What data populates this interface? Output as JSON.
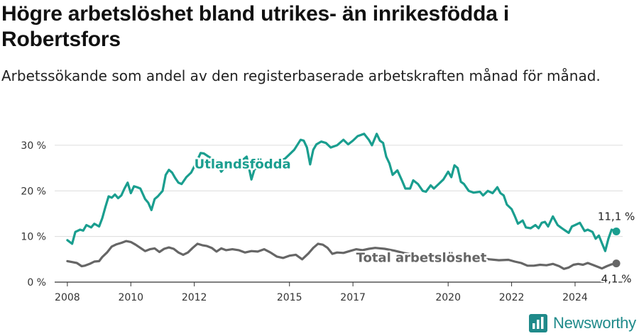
{
  "title": "Högre arbetslöshet bland utrikes- än inrikesfödda i Robertsfors",
  "subtitle": "Arbetssökande som andel av den registerbaserade arbetskraften månad för månad.",
  "brand": {
    "name": "Newsworthy",
    "icon": "newsworthy-logo-icon"
  },
  "colors": {
    "utlandsfodda": "#1a9e8f",
    "total": "#666666",
    "grid": "#dcdcdc",
    "axis": "#333333"
  },
  "chart_data": {
    "type": "line",
    "xlabel": "",
    "ylabel": "",
    "xlim": [
      2007.6,
      2025.5
    ],
    "ylim": [
      0,
      32
    ],
    "x_ticks": [
      2008,
      2010,
      2012,
      2015,
      2017,
      2020,
      2022,
      2024
    ],
    "y_ticks": [
      {
        "value": 0,
        "label": "0 %"
      },
      {
        "value": 10,
        "label": "10 %"
      },
      {
        "value": 20,
        "label": "20 %"
      },
      {
        "value": 30,
        "label": "30 %"
      }
    ],
    "grid": true,
    "series": [
      {
        "name": "Utlandsfödda",
        "end_label": "11,1 %",
        "points": [
          [
            2008.0,
            9.2
          ],
          [
            2008.15,
            8.4
          ],
          [
            2008.25,
            11.0
          ],
          [
            2008.4,
            11.5
          ],
          [
            2008.5,
            11.3
          ],
          [
            2008.6,
            12.5
          ],
          [
            2008.75,
            12.0
          ],
          [
            2008.85,
            12.8
          ],
          [
            2009.0,
            12.2
          ],
          [
            2009.1,
            14.0
          ],
          [
            2009.2,
            16.5
          ],
          [
            2009.3,
            18.8
          ],
          [
            2009.4,
            18.5
          ],
          [
            2009.5,
            19.2
          ],
          [
            2009.6,
            18.4
          ],
          [
            2009.7,
            19.0
          ],
          [
            2009.8,
            20.5
          ],
          [
            2009.9,
            21.8
          ],
          [
            2010.0,
            19.5
          ],
          [
            2010.1,
            21.0
          ],
          [
            2010.2,
            20.8
          ],
          [
            2010.3,
            20.5
          ],
          [
            2010.45,
            18.2
          ],
          [
            2010.55,
            17.4
          ],
          [
            2010.65,
            15.8
          ],
          [
            2010.75,
            18.2
          ],
          [
            2010.85,
            18.8
          ],
          [
            2011.0,
            20.0
          ],
          [
            2011.1,
            23.5
          ],
          [
            2011.2,
            24.6
          ],
          [
            2011.3,
            24.0
          ],
          [
            2011.4,
            22.8
          ],
          [
            2011.5,
            21.8
          ],
          [
            2011.6,
            21.5
          ],
          [
            2011.75,
            23.0
          ],
          [
            2011.9,
            24.0
          ],
          [
            2012.05,
            26.0
          ],
          [
            2012.2,
            28.3
          ],
          [
            2012.3,
            28.2
          ],
          [
            2012.45,
            27.5
          ],
          [
            2012.7,
            26.5
          ],
          [
            2012.85,
            24.2
          ],
          [
            2013.0,
            25.5
          ],
          [
            2013.2,
            25.4
          ],
          [
            2013.4,
            26.0
          ],
          [
            2013.65,
            27.5
          ],
          [
            2013.8,
            22.5
          ],
          [
            2013.9,
            24.8
          ],
          [
            2014.1,
            25.0
          ],
          [
            2014.3,
            25.5
          ],
          [
            2014.6,
            26.5
          ],
          [
            2014.85,
            27.0
          ],
          [
            2015.0,
            28.0
          ],
          [
            2015.15,
            29.0
          ],
          [
            2015.35,
            31.2
          ],
          [
            2015.45,
            31.0
          ],
          [
            2015.55,
            29.5
          ],
          [
            2015.65,
            25.8
          ],
          [
            2015.75,
            29.0
          ],
          [
            2015.85,
            30.2
          ],
          [
            2016.0,
            30.8
          ],
          [
            2016.15,
            30.5
          ],
          [
            2016.3,
            29.5
          ],
          [
            2016.5,
            30.0
          ],
          [
            2016.7,
            31.2
          ],
          [
            2016.85,
            30.2
          ],
          [
            2017.0,
            31.0
          ],
          [
            2017.15,
            32.0
          ],
          [
            2017.35,
            32.5
          ],
          [
            2017.5,
            31.2
          ],
          [
            2017.6,
            30.0
          ],
          [
            2017.75,
            32.5
          ],
          [
            2017.85,
            31.0
          ],
          [
            2017.95,
            30.5
          ],
          [
            2018.05,
            27.5
          ],
          [
            2018.15,
            26.0
          ],
          [
            2018.25,
            23.5
          ],
          [
            2018.4,
            24.5
          ],
          [
            2018.55,
            22.2
          ],
          [
            2018.65,
            20.5
          ],
          [
            2018.8,
            20.5
          ],
          [
            2018.9,
            22.3
          ],
          [
            2019.05,
            21.5
          ],
          [
            2019.2,
            20.0
          ],
          [
            2019.3,
            19.8
          ],
          [
            2019.45,
            21.2
          ],
          [
            2019.55,
            20.5
          ],
          [
            2019.7,
            21.5
          ],
          [
            2019.85,
            22.5
          ],
          [
            2020.0,
            24.2
          ],
          [
            2020.1,
            23.0
          ],
          [
            2020.2,
            25.6
          ],
          [
            2020.3,
            25.0
          ],
          [
            2020.4,
            22.0
          ],
          [
            2020.5,
            21.5
          ],
          [
            2020.65,
            20.0
          ],
          [
            2020.8,
            19.6
          ],
          [
            2021.0,
            19.8
          ],
          [
            2021.1,
            19.0
          ],
          [
            2021.25,
            20.0
          ],
          [
            2021.4,
            19.5
          ],
          [
            2021.55,
            20.8
          ],
          [
            2021.65,
            19.5
          ],
          [
            2021.75,
            19.0
          ],
          [
            2021.85,
            17.0
          ],
          [
            2022.0,
            16.0
          ],
          [
            2022.1,
            14.5
          ],
          [
            2022.2,
            12.8
          ],
          [
            2022.35,
            13.5
          ],
          [
            2022.45,
            12.0
          ],
          [
            2022.6,
            11.8
          ],
          [
            2022.75,
            12.5
          ],
          [
            2022.85,
            11.8
          ],
          [
            2022.95,
            13.0
          ],
          [
            2023.05,
            13.2
          ],
          [
            2023.15,
            12.2
          ],
          [
            2023.3,
            14.4
          ],
          [
            2023.45,
            12.5
          ],
          [
            2023.55,
            12.0
          ],
          [
            2023.65,
            11.5
          ],
          [
            2023.8,
            10.8
          ],
          [
            2023.9,
            12.2
          ],
          [
            2024.0,
            12.5
          ],
          [
            2024.15,
            13.0
          ],
          [
            2024.3,
            11.2
          ],
          [
            2024.4,
            11.5
          ],
          [
            2024.55,
            11.0
          ],
          [
            2024.65,
            9.5
          ],
          [
            2024.75,
            10.2
          ],
          [
            2024.85,
            8.5
          ],
          [
            2024.95,
            6.8
          ],
          [
            2025.05,
            9.5
          ],
          [
            2025.15,
            11.5
          ],
          [
            2025.3,
            11.1
          ]
        ]
      },
      {
        "name": "Total arbetslöshet",
        "end_label": "4,1 %",
        "points": [
          [
            2008.0,
            4.6
          ],
          [
            2008.15,
            4.4
          ],
          [
            2008.3,
            4.2
          ],
          [
            2008.45,
            3.5
          ],
          [
            2008.55,
            3.6
          ],
          [
            2008.7,
            4.0
          ],
          [
            2008.85,
            4.5
          ],
          [
            2009.0,
            4.6
          ],
          [
            2009.1,
            5.5
          ],
          [
            2009.25,
            6.5
          ],
          [
            2009.4,
            7.8
          ],
          [
            2009.55,
            8.3
          ],
          [
            2009.7,
            8.6
          ],
          [
            2009.85,
            9.0
          ],
          [
            2010.0,
            8.8
          ],
          [
            2010.15,
            8.2
          ],
          [
            2010.3,
            7.5
          ],
          [
            2010.45,
            6.8
          ],
          [
            2010.6,
            7.2
          ],
          [
            2010.75,
            7.4
          ],
          [
            2010.9,
            6.6
          ],
          [
            2011.05,
            7.3
          ],
          [
            2011.2,
            7.6
          ],
          [
            2011.35,
            7.3
          ],
          [
            2011.5,
            6.5
          ],
          [
            2011.65,
            6.0
          ],
          [
            2011.8,
            6.5
          ],
          [
            2011.95,
            7.5
          ],
          [
            2012.1,
            8.4
          ],
          [
            2012.25,
            8.1
          ],
          [
            2012.4,
            7.9
          ],
          [
            2012.55,
            7.5
          ],
          [
            2012.7,
            6.7
          ],
          [
            2012.85,
            7.4
          ],
          [
            2013.0,
            7.0
          ],
          [
            2013.2,
            7.2
          ],
          [
            2013.4,
            7.0
          ],
          [
            2013.6,
            6.5
          ],
          [
            2013.8,
            6.8
          ],
          [
            2014.0,
            6.7
          ],
          [
            2014.2,
            7.2
          ],
          [
            2014.4,
            6.5
          ],
          [
            2014.6,
            5.6
          ],
          [
            2014.8,
            5.3
          ],
          [
            2015.0,
            5.8
          ],
          [
            2015.2,
            6.0
          ],
          [
            2015.4,
            5.0
          ],
          [
            2015.6,
            6.3
          ],
          [
            2015.75,
            7.5
          ],
          [
            2015.9,
            8.4
          ],
          [
            2016.05,
            8.2
          ],
          [
            2016.2,
            7.5
          ],
          [
            2016.35,
            6.2
          ],
          [
            2016.5,
            6.5
          ],
          [
            2016.7,
            6.4
          ],
          [
            2016.9,
            6.8
          ],
          [
            2017.1,
            7.2
          ],
          [
            2017.3,
            7.0
          ],
          [
            2017.5,
            7.3
          ],
          [
            2017.7,
            7.5
          ],
          [
            2018.0,
            7.3
          ],
          [
            2018.3,
            6.9
          ],
          [
            2018.6,
            6.4
          ],
          [
            2018.9,
            6.0
          ],
          [
            2019.2,
            5.5
          ],
          [
            2019.5,
            5.2
          ],
          [
            2019.8,
            5.4
          ],
          [
            2020.1,
            5.8
          ],
          [
            2020.4,
            5.7
          ],
          [
            2020.7,
            5.5
          ],
          [
            2021.0,
            5.3
          ],
          [
            2021.3,
            5.0
          ],
          [
            2021.6,
            4.8
          ],
          [
            2021.9,
            4.9
          ],
          [
            2022.1,
            4.5
          ],
          [
            2022.3,
            4.2
          ],
          [
            2022.5,
            3.6
          ],
          [
            2022.7,
            3.6
          ],
          [
            2022.9,
            3.8
          ],
          [
            2023.1,
            3.7
          ],
          [
            2023.3,
            4.0
          ],
          [
            2023.5,
            3.5
          ],
          [
            2023.65,
            2.9
          ],
          [
            2023.8,
            3.2
          ],
          [
            2023.95,
            3.8
          ],
          [
            2024.1,
            4.0
          ],
          [
            2024.25,
            3.8
          ],
          [
            2024.4,
            4.2
          ],
          [
            2024.55,
            3.8
          ],
          [
            2024.7,
            3.4
          ],
          [
            2024.85,
            3.0
          ],
          [
            2025.0,
            3.5
          ],
          [
            2025.15,
            3.9
          ],
          [
            2025.3,
            4.1
          ]
        ]
      }
    ]
  }
}
